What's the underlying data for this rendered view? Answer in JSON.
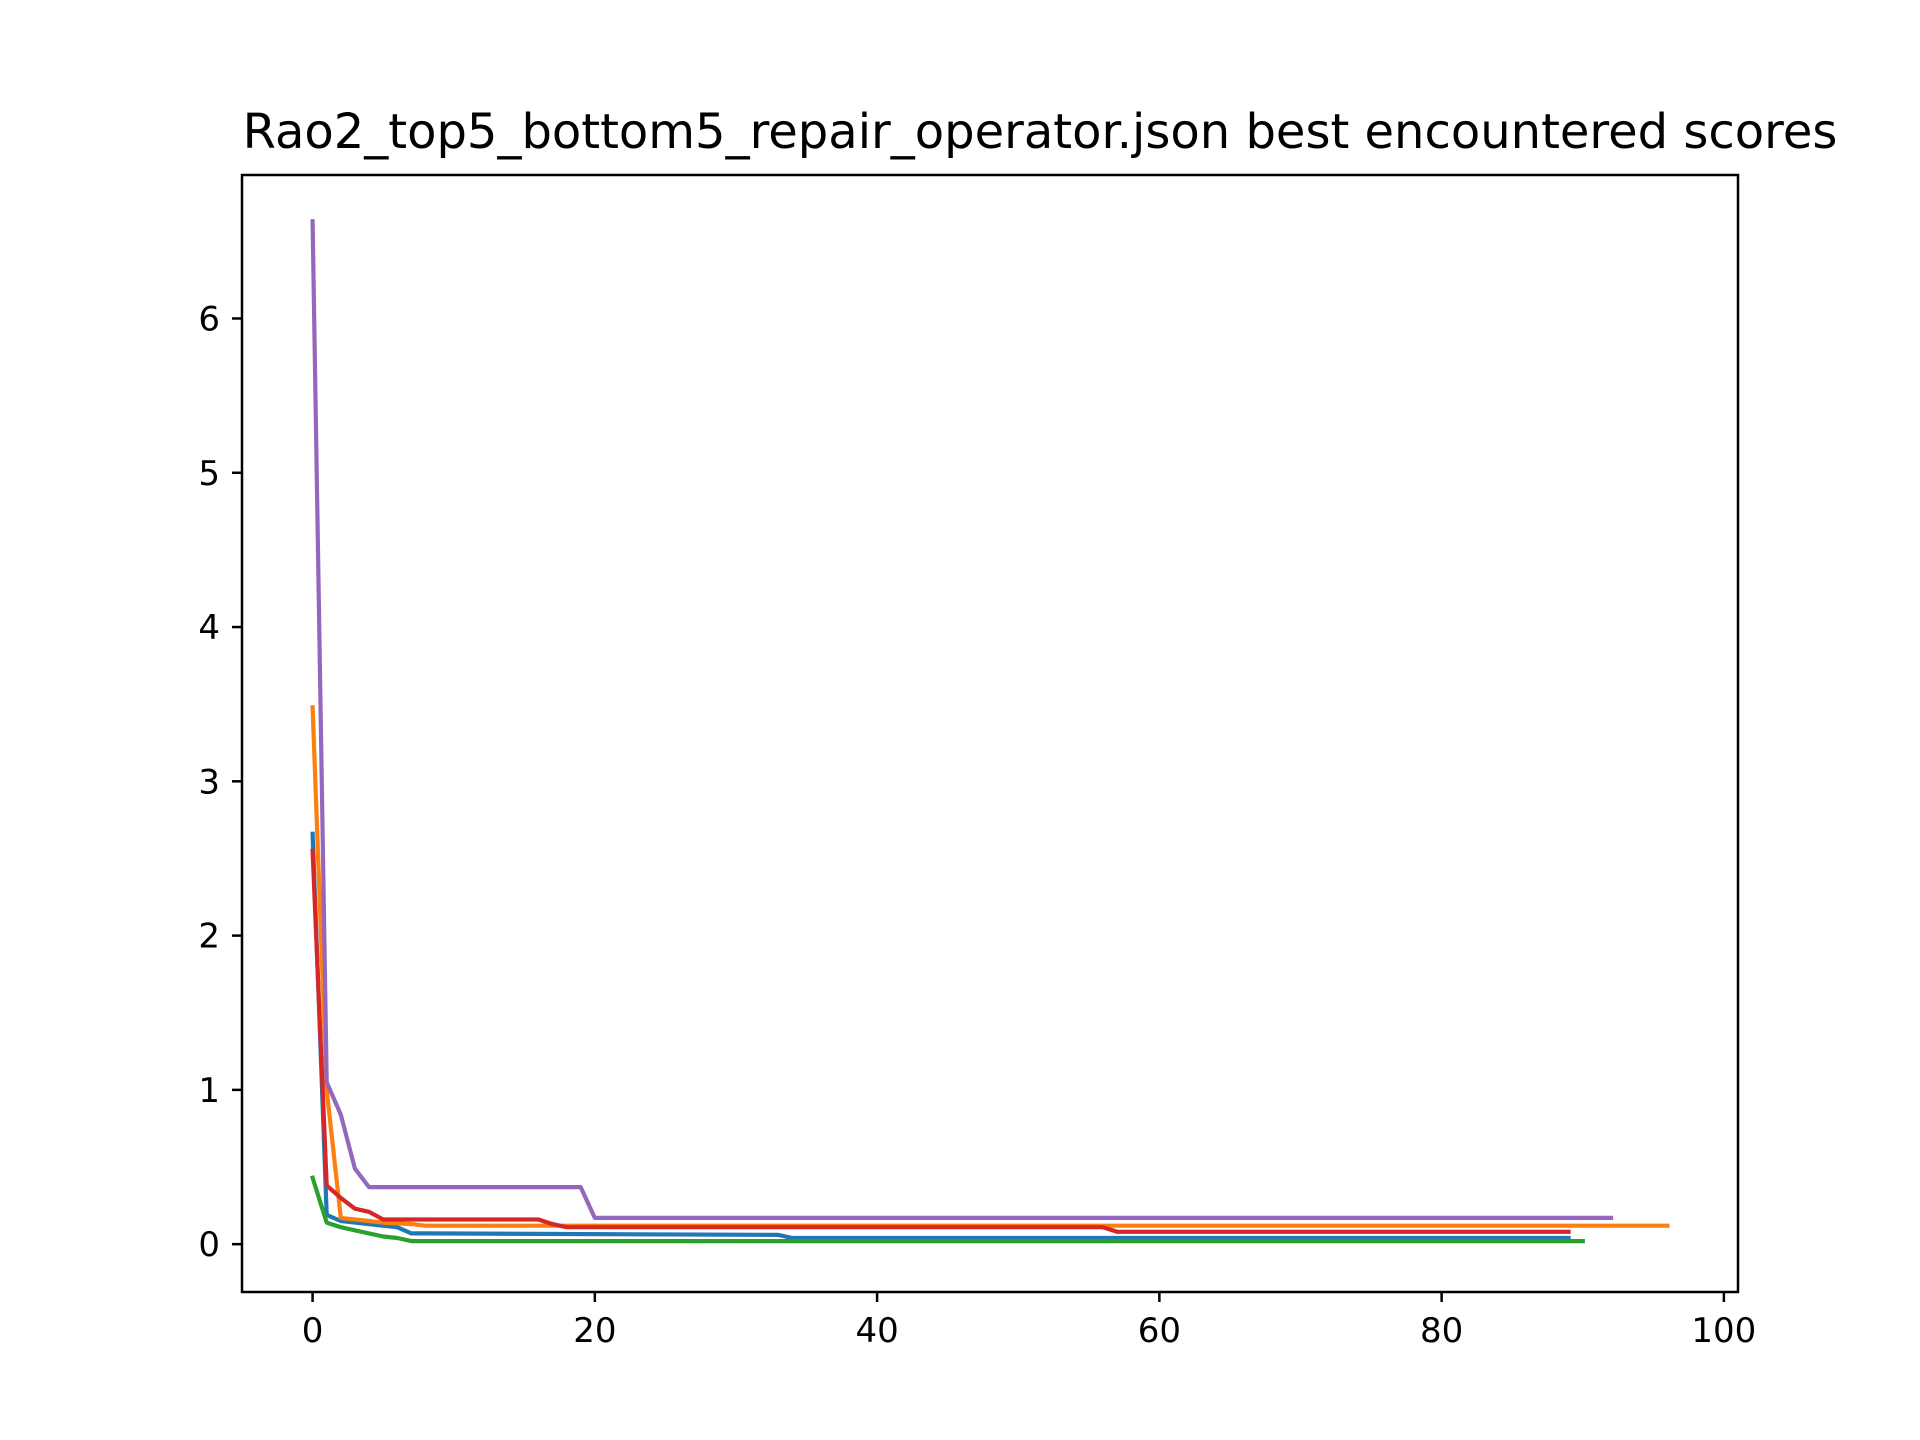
{
  "chart_data": {
    "type": "line",
    "title": "Rao2_top5_bottom5_repair_operator.json best encountered scores",
    "xlabel": "",
    "ylabel": "",
    "xlim": [
      -5,
      101
    ],
    "ylim": [
      -0.31,
      6.93
    ],
    "x_ticks": [
      "0",
      "20",
      "40",
      "60",
      "80",
      "100"
    ],
    "y_ticks": [
      "0",
      "1",
      "2",
      "3",
      "4",
      "5",
      "6"
    ],
    "grid": false,
    "legend": "none",
    "series": [
      {
        "color": "#1f77b4",
        "points": [
          [
            0,
            2.66
          ],
          [
            1,
            0.19
          ],
          [
            2,
            0.15
          ],
          [
            3,
            0.14
          ],
          [
            4,
            0.13
          ],
          [
            5,
            0.12
          ],
          [
            6,
            0.11
          ],
          [
            7,
            0.07
          ],
          [
            8,
            0.07
          ],
          [
            33,
            0.06
          ],
          [
            34,
            0.04
          ],
          [
            89,
            0.04
          ]
        ]
      },
      {
        "color": "#ff7f0e",
        "points": [
          [
            0,
            3.48
          ],
          [
            1,
            1.0
          ],
          [
            2,
            0.17
          ],
          [
            3,
            0.16
          ],
          [
            4,
            0.15
          ],
          [
            5,
            0.14
          ],
          [
            7,
            0.13
          ],
          [
            8,
            0.12
          ],
          [
            96,
            0.12
          ]
        ]
      },
      {
        "color": "#2ca02c",
        "points": [
          [
            0,
            0.43
          ],
          [
            1,
            0.14
          ],
          [
            2,
            0.11
          ],
          [
            3,
            0.09
          ],
          [
            4,
            0.07
          ],
          [
            5,
            0.05
          ],
          [
            6,
            0.04
          ],
          [
            7,
            0.02
          ],
          [
            90,
            0.02
          ]
        ]
      },
      {
        "color": "#d62728",
        "points": [
          [
            0,
            2.55
          ],
          [
            1,
            0.38
          ],
          [
            2,
            0.3
          ],
          [
            3,
            0.23
          ],
          [
            4,
            0.21
          ],
          [
            5,
            0.16
          ],
          [
            16,
            0.16
          ],
          [
            17,
            0.13
          ],
          [
            18,
            0.11
          ],
          [
            56,
            0.11
          ],
          [
            57,
            0.08
          ],
          [
            89,
            0.08
          ]
        ]
      },
      {
        "color": "#9467bd",
        "points": [
          [
            0,
            6.63
          ],
          [
            1,
            1.05
          ],
          [
            2,
            0.84
          ],
          [
            3,
            0.49
          ],
          [
            4,
            0.37
          ],
          [
            19,
            0.37
          ],
          [
            20,
            0.17
          ],
          [
            92,
            0.17
          ]
        ]
      }
    ]
  }
}
